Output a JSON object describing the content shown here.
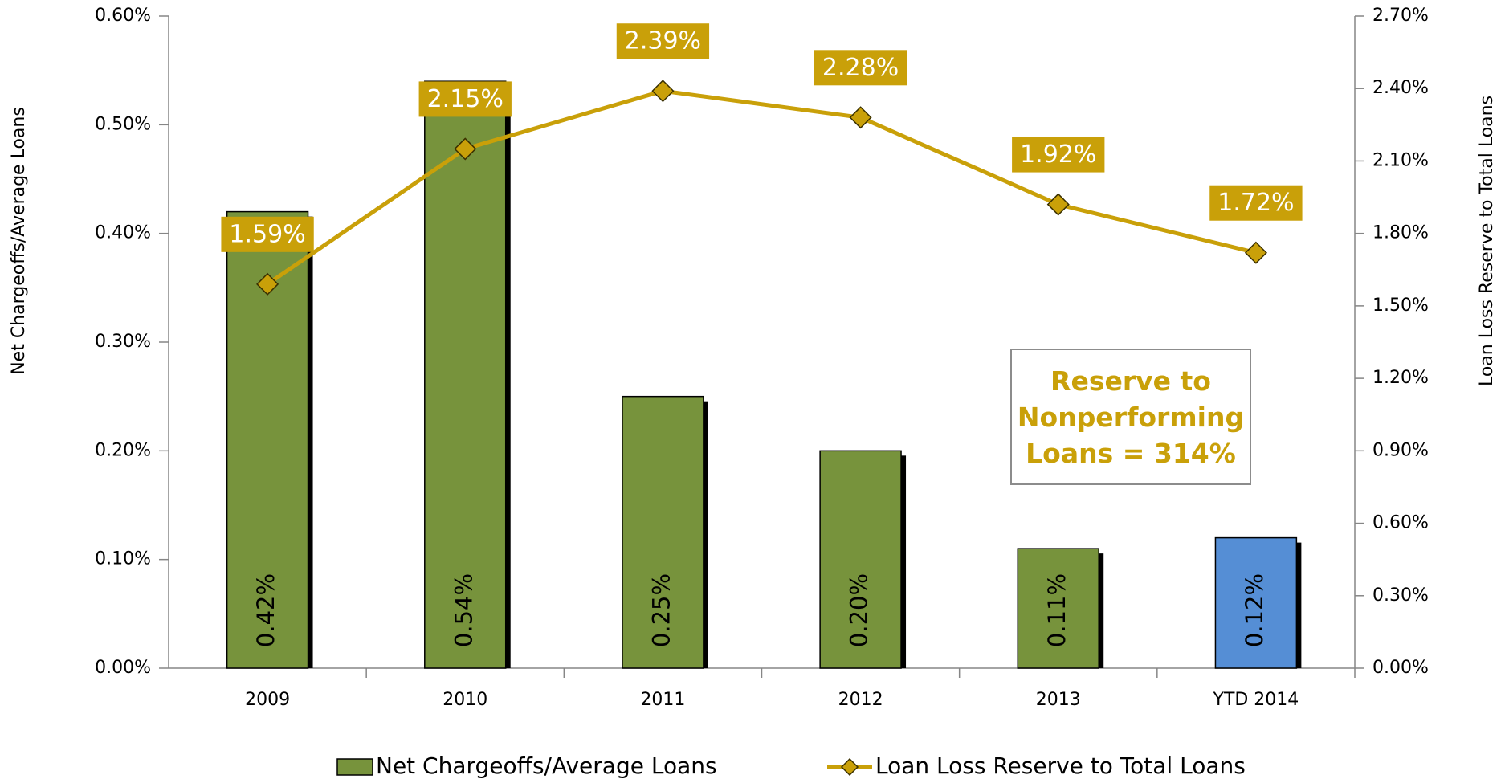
{
  "chart_data": {
    "type": "bar-line",
    "categories": [
      "2009",
      "2010",
      "2011",
      "2012",
      "2013",
      "YTD 2014"
    ],
    "series": [
      {
        "name": "Net Chargeoffs/Average Loans",
        "type": "bar",
        "axis": "y",
        "color": "#77933c",
        "colors": [
          "#77933c",
          "#77933c",
          "#77933c",
          "#77933c",
          "#77933c",
          "#558ed5"
        ],
        "values": [
          0.42,
          0.54,
          0.25,
          0.2,
          0.11,
          0.12
        ],
        "value_labels": [
          "0.42%",
          "0.54%",
          "0.25%",
          "0.20%",
          "0.11%",
          "0.12%"
        ]
      },
      {
        "name": "Loan Loss Reserve to Total Loans",
        "type": "line",
        "axis": "y2",
        "color": "#c9a009",
        "values": [
          1.59,
          2.15,
          2.39,
          2.28,
          1.92,
          1.72
        ],
        "value_labels": [
          "1.59%",
          "2.15%",
          "2.39%",
          "2.28%",
          "1.92%",
          "1.72%"
        ]
      }
    ],
    "ylabel": "Net Chargeoffs/Average Loans",
    "y2label": "Loan Loss Reserve to Total Loans",
    "ylim": [
      0,
      0.6
    ],
    "yticks": [
      {
        "value": 0,
        "label": "0.00%"
      },
      {
        "value": 0.1,
        "label": "0.10%"
      },
      {
        "value": 0.2,
        "label": "0.20%"
      },
      {
        "value": 0.3,
        "label": "0.30%"
      },
      {
        "value": 0.4,
        "label": "0.40%"
      },
      {
        "value": 0.5,
        "label": "0.50%"
      },
      {
        "value": 0.6,
        "label": "0.60%"
      }
    ],
    "y2lim": [
      0,
      2.7
    ],
    "y2ticks": [
      {
        "value": 0,
        "label": "0.00%"
      },
      {
        "value": 0.3,
        "label": "0.30%"
      },
      {
        "value": 0.6,
        "label": "0.60%"
      },
      {
        "value": 0.9,
        "label": "0.90%"
      },
      {
        "value": 1.2,
        "label": "1.20%"
      },
      {
        "value": 1.5,
        "label": "1.50%"
      },
      {
        "value": 1.8,
        "label": "1.80%"
      },
      {
        "value": 2.1,
        "label": "2.10%"
      },
      {
        "value": 2.4,
        "label": "2.40%"
      },
      {
        "value": 2.7,
        "label": "2.70%"
      }
    ],
    "annotation": "Reserve to Nonperforming Loans = 314%",
    "legend": "bottom"
  }
}
